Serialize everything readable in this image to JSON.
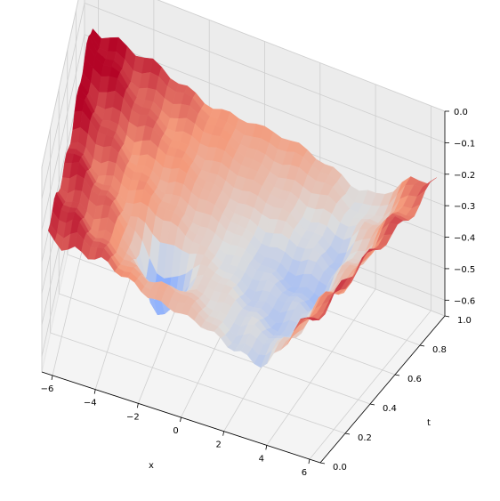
{
  "chart_data": {
    "type": "surface3d",
    "title": "",
    "xlabel": "x",
    "ylabel": "t",
    "zlabel": "",
    "x_ticks": [
      -6,
      -4,
      -2,
      0,
      2,
      4,
      6
    ],
    "x_tick_labels": [
      "−6",
      "−4",
      "−2",
      "0",
      "2",
      "4",
      "6"
    ],
    "y_ticks": [
      0.0,
      0.2,
      0.4,
      0.6,
      0.8,
      1.0
    ],
    "y_tick_labels": [
      "0.0",
      "0.2",
      "0.4",
      "0.6",
      "0.8",
      "1.0"
    ],
    "z_ticks": [
      0.0,
      -0.1,
      -0.2,
      -0.3,
      -0.4,
      -0.5,
      -0.6
    ],
    "z_tick_labels": [
      "0.0",
      "−0.1",
      "−0.2",
      "−0.3",
      "−0.4",
      "−0.5",
      "−0.6"
    ],
    "xlim": [
      -6.5,
      6.5
    ],
    "ylim": [
      0.0,
      1.0
    ],
    "zlim": [
      -0.65,
      0.0
    ],
    "colormap": "coolwarm",
    "colormap_stops": [
      "#3b4cc0",
      "#8db0fe",
      "#dddddd",
      "#f49a7b",
      "#b40426"
    ],
    "grid": true,
    "surface_profile": {
      "x": [
        -6.2,
        -4,
        -2,
        0,
        2,
        4,
        6.2
      ],
      "t": [
        0,
        0.5,
        1
      ],
      "z": [
        [
          -0.2,
          -0.24,
          -0.28,
          -0.32,
          -0.37,
          -0.39,
          -0.18
        ],
        [
          -0.2,
          -0.27,
          -0.3,
          -0.36,
          -0.4,
          -0.42,
          -0.23
        ],
        [
          -0.15,
          -0.22,
          -0.26,
          -0.28,
          -0.3,
          -0.36,
          -0.22
        ]
      ],
      "ridge_t": 0.05,
      "ridge_z": [
        -0.2,
        -0.24,
        -0.28,
        -0.32,
        -0.37,
        -0.39,
        -0.2
      ],
      "trough_x": -1.8,
      "trough_t": 0.25,
      "trough_z": -0.55
    }
  }
}
